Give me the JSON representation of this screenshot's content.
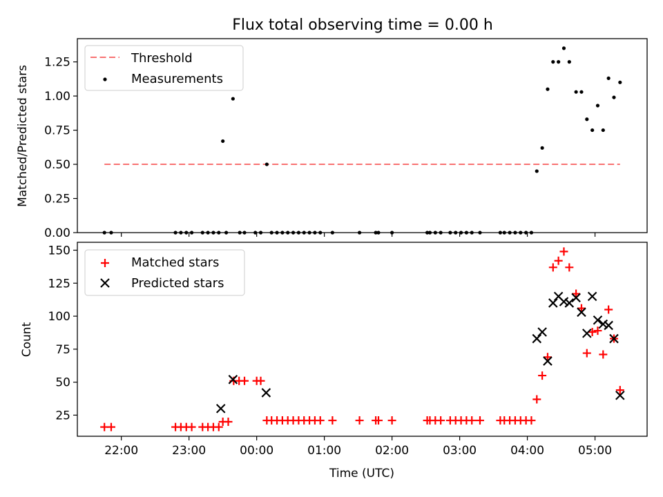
{
  "chart_data": [
    {
      "type": "scatter",
      "title": "Flux total observing time = 0.00 h",
      "xlabel": "",
      "ylabel": "Matched/Predicted stars",
      "ylim": [
        0,
        1.42
      ],
      "xlim": [
        -2.65,
        5.77
      ],
      "yticks": [
        0.0,
        0.25,
        0.5,
        0.75,
        1.0,
        1.25
      ],
      "ytick_labels": [
        "0.00",
        "0.25",
        "0.50",
        "0.75",
        "1.00",
        "1.25"
      ],
      "legend_position": "upper-left",
      "legend": [
        "Threshold",
        "Measurements"
      ],
      "threshold": {
        "name": "Threshold",
        "value": 0.5,
        "x_range": [
          -2.25,
          5.37
        ],
        "color": "#f87070",
        "style": "dashed"
      },
      "series": [
        {
          "name": "Measurements",
          "marker": "dot",
          "color": "#000000",
          "points": [
            [
              -2.25,
              0
            ],
            [
              -2.15,
              0
            ],
            [
              -1.2,
              0
            ],
            [
              -1.12,
              0
            ],
            [
              -1.04,
              0
            ],
            [
              -0.96,
              0
            ],
            [
              -0.8,
              0
            ],
            [
              -0.72,
              0
            ],
            [
              -0.64,
              0
            ],
            [
              -0.56,
              0
            ],
            [
              -0.5,
              0.67
            ],
            [
              -0.45,
              0
            ],
            [
              -0.35,
              0.98
            ],
            [
              -0.25,
              0
            ],
            [
              -0.18,
              0
            ],
            [
              -0.02,
              0
            ],
            [
              0.06,
              0
            ],
            [
              0.15,
              0.5
            ],
            [
              0.22,
              0
            ],
            [
              0.3,
              0
            ],
            [
              0.38,
              0
            ],
            [
              0.46,
              0
            ],
            [
              0.54,
              0
            ],
            [
              0.62,
              0
            ],
            [
              0.7,
              0
            ],
            [
              0.78,
              0
            ],
            [
              0.86,
              0
            ],
            [
              0.94,
              0
            ],
            [
              1.12,
              0
            ],
            [
              1.52,
              0
            ],
            [
              1.76,
              0
            ],
            [
              1.8,
              0
            ],
            [
              2.0,
              0
            ],
            [
              2.52,
              0
            ],
            [
              2.56,
              0
            ],
            [
              2.64,
              0
            ],
            [
              2.72,
              0
            ],
            [
              2.86,
              0
            ],
            [
              2.94,
              0
            ],
            [
              3.02,
              0
            ],
            [
              3.1,
              0
            ],
            [
              3.18,
              0
            ],
            [
              3.3,
              0
            ],
            [
              3.6,
              0
            ],
            [
              3.66,
              0
            ],
            [
              3.74,
              0
            ],
            [
              3.82,
              0
            ],
            [
              3.9,
              0
            ],
            [
              3.98,
              0
            ],
            [
              4.06,
              0
            ],
            [
              4.14,
              0.45
            ],
            [
              4.22,
              0.62
            ],
            [
              4.3,
              1.05
            ],
            [
              4.38,
              1.25
            ],
            [
              4.46,
              1.25
            ],
            [
              4.54,
              1.35
            ],
            [
              4.62,
              1.25
            ],
            [
              4.72,
              1.03
            ],
            [
              4.8,
              1.03
            ],
            [
              4.88,
              0.83
            ],
            [
              4.96,
              0.75
            ],
            [
              5.04,
              0.93
            ],
            [
              5.12,
              0.75
            ],
            [
              5.2,
              1.13
            ],
            [
              5.28,
              0.99
            ],
            [
              5.37,
              1.1
            ]
          ]
        }
      ]
    },
    {
      "type": "scatter",
      "title": "",
      "xlabel": "Time (UTC)",
      "ylabel": "Count",
      "ylim": [
        9,
        156
      ],
      "xlim": [
        -2.65,
        5.77
      ],
      "yticks": [
        25,
        50,
        75,
        100,
        125,
        150
      ],
      "xticks": [
        -2,
        -1,
        0,
        1,
        2,
        3,
        4,
        5
      ],
      "xtick_labels": [
        "22:00",
        "23:00",
        "00:00",
        "01:00",
        "02:00",
        "03:00",
        "04:00",
        "05:00"
      ],
      "legend_position": "upper-left",
      "legend": [
        "Matched stars",
        "Predicted stars"
      ],
      "series": [
        {
          "name": "Matched stars",
          "marker": "plus",
          "color": "#ff0000",
          "points": [
            [
              -2.25,
              16
            ],
            [
              -2.15,
              16
            ],
            [
              -1.2,
              16
            ],
            [
              -1.12,
              16
            ],
            [
              -1.04,
              16
            ],
            [
              -0.96,
              16
            ],
            [
              -0.8,
              16
            ],
            [
              -0.72,
              16
            ],
            [
              -0.64,
              16
            ],
            [
              -0.56,
              16
            ],
            [
              -0.5,
              20
            ],
            [
              -0.42,
              20
            ],
            [
              -0.34,
              51
            ],
            [
              -0.26,
              51
            ],
            [
              -0.18,
              51
            ],
            [
              0.0,
              51
            ],
            [
              0.06,
              51
            ],
            [
              0.15,
              21
            ],
            [
              0.22,
              21
            ],
            [
              0.3,
              21
            ],
            [
              0.38,
              21
            ],
            [
              0.46,
              21
            ],
            [
              0.54,
              21
            ],
            [
              0.62,
              21
            ],
            [
              0.7,
              21
            ],
            [
              0.78,
              21
            ],
            [
              0.86,
              21
            ],
            [
              0.94,
              21
            ],
            [
              1.12,
              21
            ],
            [
              1.52,
              21
            ],
            [
              1.76,
              21
            ],
            [
              1.8,
              21
            ],
            [
              2.0,
              21
            ],
            [
              2.52,
              21
            ],
            [
              2.56,
              21
            ],
            [
              2.64,
              21
            ],
            [
              2.72,
              21
            ],
            [
              2.86,
              21
            ],
            [
              2.94,
              21
            ],
            [
              3.02,
              21
            ],
            [
              3.1,
              21
            ],
            [
              3.18,
              21
            ],
            [
              3.3,
              21
            ],
            [
              3.6,
              21
            ],
            [
              3.66,
              21
            ],
            [
              3.74,
              21
            ],
            [
              3.82,
              21
            ],
            [
              3.9,
              21
            ],
            [
              3.98,
              21
            ],
            [
              4.06,
              21
            ],
            [
              4.14,
              37
            ],
            [
              4.22,
              55
            ],
            [
              4.3,
              69
            ],
            [
              4.38,
              137
            ],
            [
              4.46,
              142
            ],
            [
              4.54,
              149
            ],
            [
              4.62,
              137
            ],
            [
              4.72,
              117
            ],
            [
              4.8,
              106
            ],
            [
              4.88,
              72
            ],
            [
              4.96,
              88
            ],
            [
              5.04,
              89
            ],
            [
              5.12,
              71
            ],
            [
              5.2,
              105
            ],
            [
              5.28,
              83
            ],
            [
              5.37,
              44
            ]
          ]
        },
        {
          "name": "Predicted stars",
          "marker": "x",
          "color": "#000000",
          "points": [
            [
              -0.53,
              30
            ],
            [
              -0.35,
              52
            ],
            [
              0.14,
              42
            ],
            [
              4.14,
              83
            ],
            [
              4.22,
              88
            ],
            [
              4.3,
              66
            ],
            [
              4.38,
              110
            ],
            [
              4.46,
              115
            ],
            [
              4.54,
              111
            ],
            [
              4.62,
              110
            ],
            [
              4.72,
              114
            ],
            [
              4.8,
              103
            ],
            [
              4.88,
              87
            ],
            [
              4.96,
              115
            ],
            [
              5.04,
              97
            ],
            [
              5.12,
              94
            ],
            [
              5.2,
              93
            ],
            [
              5.28,
              83
            ],
            [
              5.37,
              40
            ]
          ]
        }
      ]
    }
  ]
}
